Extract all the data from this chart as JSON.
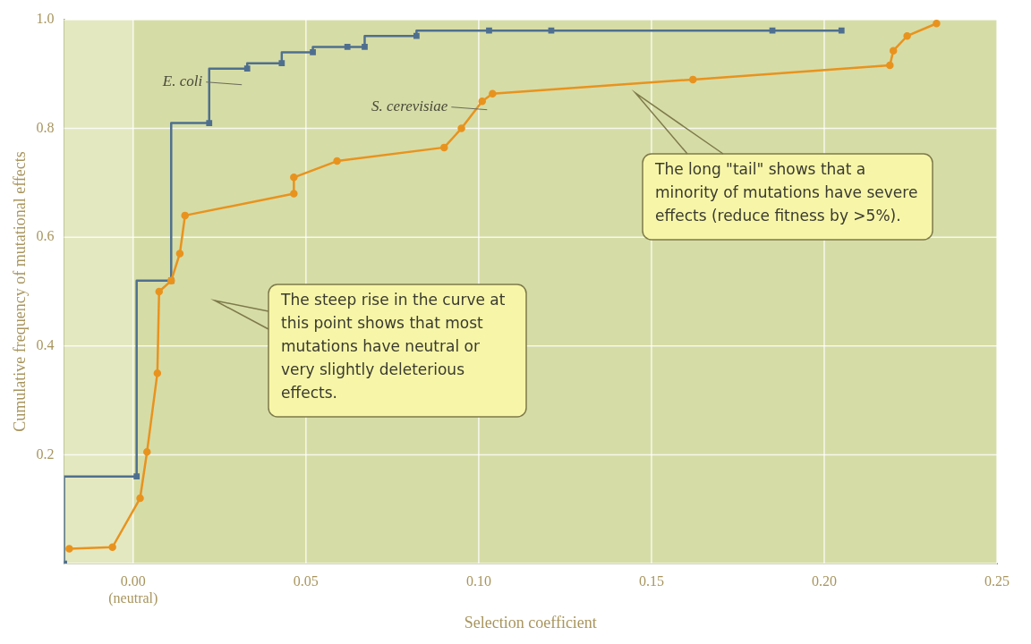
{
  "chart_data": {
    "type": "line",
    "xlabel": "Selection coefficient",
    "ylabel": "Cumulative frequency of mutational effects",
    "xlim": [
      -0.02,
      0.25
    ],
    "xticks": [
      {
        "value": 0,
        "label": "0.00 (neutral)"
      },
      {
        "value": 0.05,
        "label": "0.05"
      },
      {
        "value": 0.1,
        "label": "0.10"
      },
      {
        "value": 0.15,
        "label": "0.15"
      },
      {
        "value": 0.2,
        "label": "0.20"
      },
      {
        "value": 0.25,
        "label": "0.25"
      }
    ],
    "ylim": [
      0,
      1
    ],
    "yticks": [
      {
        "value": 0,
        "label": null
      },
      0.2,
      0.4,
      0.6,
      0.8,
      {
        "value": 1,
        "label": "1.0"
      }
    ],
    "grid": true,
    "legend": false,
    "bands": [
      {
        "axis": "x",
        "from": -0.02,
        "to": 0,
        "color": "#e4e8c0"
      }
    ],
    "series": [
      {
        "name": "E. coli",
        "type": "step",
        "color": "#4f6f8f",
        "marker": "square",
        "x": [
          -0.02,
          0.001,
          0.011,
          0.022,
          0.033,
          0.043,
          0.052,
          0.062,
          0.067,
          0.082,
          0.103,
          0.121,
          0.185,
          0.205
        ],
        "values": [
          0,
          0.16,
          0.52,
          0.81,
          0.91,
          0.92,
          0.94,
          0.95,
          0.95,
          0.97,
          0.98,
          0.98,
          0.98,
          0.98
        ]
      },
      {
        "name": "S. cerevisiae",
        "type": "line",
        "color": "#e8931e",
        "marker": "circle",
        "x": [
          -0.0185,
          -0.006,
          0.002,
          0.004,
          0.007,
          0.0075,
          0.011,
          0.0135,
          0.015,
          0.0465,
          0.0465,
          0.059,
          0.09,
          0.095,
          0.101,
          0.104,
          0.162,
          0.219,
          0.22,
          0.224,
          0.2325
        ],
        "values": [
          0.027,
          0.03,
          0.12,
          0.205,
          0.35,
          0.5,
          0.52,
          0.57,
          0.64,
          0.68,
          0.71,
          0.74,
          0.765,
          0.8,
          0.85,
          0.864,
          0.89,
          0.916,
          0.943,
          0.97,
          0.993
        ]
      }
    ],
    "annotations": [
      "The steep rise in the curve at this point shows that most mutations have neutral or very slightly deleterious effects.",
      "The long \"tail\" shows that a minority of mutations have severe effects (reduce fitness by >5%)."
    ]
  }
}
